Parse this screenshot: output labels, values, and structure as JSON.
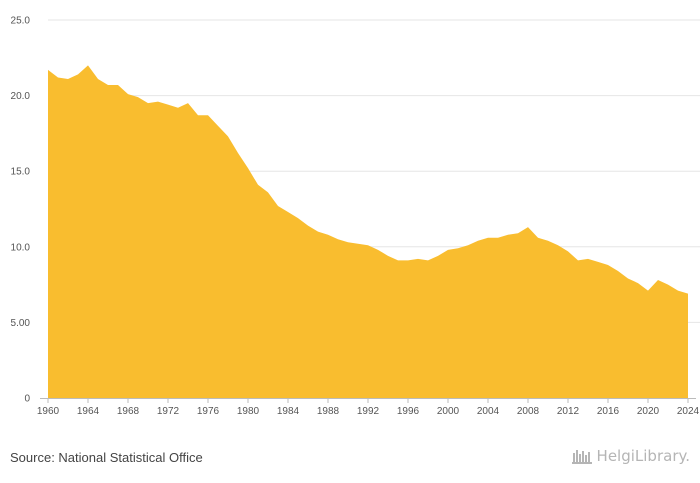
{
  "colors": {
    "fill": "#F9BD2F",
    "grid": "#e6e6e6",
    "axis": "#bbbbbb",
    "logo": "#b5b5b5"
  },
  "source": "Source: National Statistical Office",
  "brand": {
    "name": "HelgiLibrary.",
    "icon": "library-icon"
  },
  "chart_data": {
    "type": "area",
    "x": [
      1960,
      1961,
      1962,
      1963,
      1964,
      1965,
      1966,
      1967,
      1968,
      1969,
      1970,
      1971,
      1972,
      1973,
      1974,
      1975,
      1976,
      1977,
      1978,
      1979,
      1980,
      1981,
      1982,
      1983,
      1984,
      1985,
      1986,
      1987,
      1988,
      1989,
      1990,
      1991,
      1992,
      1993,
      1994,
      1995,
      1996,
      1997,
      1998,
      1999,
      2000,
      2001,
      2002,
      2003,
      2004,
      2005,
      2006,
      2007,
      2008,
      2009,
      2010,
      2011,
      2012,
      2013,
      2014,
      2015,
      2016,
      2017,
      2018,
      2019,
      2020,
      2021,
      2022,
      2023,
      2024
    ],
    "series": [
      {
        "values": [
          21.7,
          21.2,
          21.1,
          21.4,
          22.0,
          21.1,
          20.7,
          20.7,
          20.1,
          19.9,
          19.5,
          19.6,
          19.4,
          19.2,
          19.5,
          18.7,
          18.7,
          18.0,
          17.3,
          16.2,
          15.2,
          14.1,
          13.6,
          12.7,
          12.3,
          11.9,
          11.4,
          11.0,
          10.8,
          10.5,
          10.3,
          10.2,
          10.1,
          9.8,
          9.4,
          9.1,
          9.1,
          9.2,
          9.1,
          9.4,
          9.8,
          9.9,
          10.1,
          10.4,
          10.6,
          10.6,
          10.8,
          10.9,
          11.3,
          10.6,
          10.4,
          10.1,
          9.7,
          9.1,
          9.2,
          9.0,
          8.8,
          8.4,
          7.9,
          7.6,
          7.1,
          7.8,
          7.5,
          7.1,
          6.9
        ]
      }
    ],
    "ylim": [
      0,
      25
    ],
    "yticks": [
      0,
      5,
      10,
      15,
      20,
      25
    ],
    "ytick_labels": [
      "0",
      "5.00",
      "10.0",
      "15.0",
      "20.0",
      "25.0"
    ],
    "xticks": [
      1960,
      1964,
      1968,
      1972,
      1976,
      1980,
      1984,
      1988,
      1992,
      1996,
      2000,
      2004,
      2008,
      2012,
      2016,
      2020,
      2024
    ],
    "xtick_labels": [
      "1960",
      "1964",
      "1968",
      "1972",
      "1976",
      "1980",
      "1984",
      "1988",
      "1992",
      "1996",
      "2000",
      "2004",
      "2008",
      "2012",
      "2016",
      "2020",
      "2024"
    ],
    "grid": true,
    "legend": "none",
    "title": "",
    "xlabel": "",
    "ylabel": ""
  }
}
